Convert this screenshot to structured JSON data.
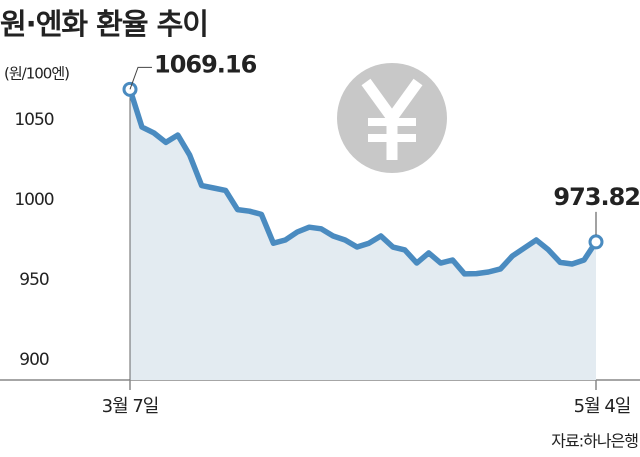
{
  "chart_data": {
    "type": "line",
    "title": "원·엔화 환율 추이",
    "y_label": "(원/100엔)",
    "source": "자료:하나은행",
    "categories": [
      "3월 7일",
      null,
      null,
      null,
      null,
      null,
      null,
      null,
      null,
      null,
      null,
      null,
      null,
      null,
      null,
      null,
      null,
      null,
      null,
      null,
      null,
      null,
      null,
      null,
      null,
      null,
      null,
      null,
      null,
      null,
      null,
      null,
      null,
      null,
      null,
      null,
      null,
      null,
      null,
      "5월 4일"
    ],
    "series": [
      {
        "name": "원·엔 환율",
        "color": "#4a8bc0",
        "values": [
          1069.16,
          1045.6,
          1041.9,
          1036,
          1040.6,
          1028,
          1009,
          1007.5,
          1006,
          994,
          993,
          991,
          973,
          975,
          980,
          983,
          982,
          977.5,
          975,
          970.6,
          973,
          977.5,
          970.6,
          968.8,
          960.6,
          966.9,
          960.6,
          962.5,
          953.8,
          954,
          955,
          956.9,
          965,
          970,
          975,
          969,
          961,
          960,
          962.5,
          973.82
        ],
        "value_labels": [
          "1069.16",
          null,
          null,
          null,
          null,
          null,
          null,
          null,
          null,
          null,
          null,
          null,
          null,
          null,
          null,
          null,
          null,
          null,
          null,
          null,
          null,
          null,
          null,
          null,
          null,
          null,
          null,
          null,
          null,
          null,
          null,
          null,
          null,
          null,
          null,
          null,
          null,
          null,
          null,
          "973.82"
        ]
      }
    ],
    "ylim": [
      887.5,
      1087.5
    ],
    "yticks": [
      900,
      950,
      1000,
      1050
    ],
    "area_color": "#e3ebf1"
  }
}
